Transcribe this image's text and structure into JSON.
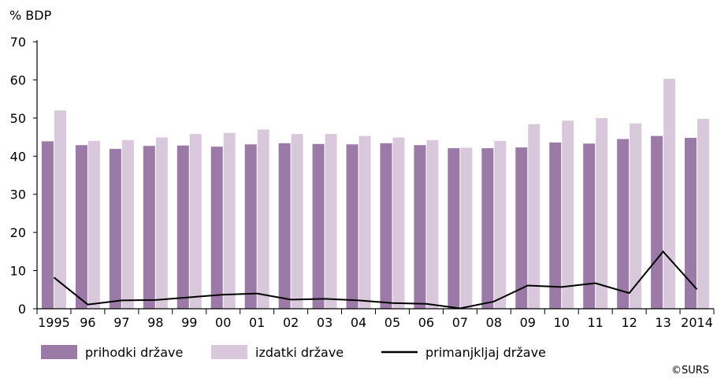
{
  "chart_data": {
    "type": "bar",
    "ylabel": "% BDP",
    "ylim": [
      0,
      70
    ],
    "yticks": [
      "0",
      "10",
      "20",
      "30",
      "40",
      "50",
      "60",
      "70"
    ],
    "grid": false,
    "legend_position": "bottom",
    "categories": [
      "1995",
      "96",
      "97",
      "98",
      "99",
      "00",
      "01",
      "02",
      "03",
      "04",
      "05",
      "06",
      "07",
      "08",
      "09",
      "10",
      "11",
      "12",
      "13",
      "2014"
    ],
    "series": [
      {
        "name": "prihodki države",
        "type": "bar",
        "color": "#9c7aa8",
        "values": [
          43.9,
          42.9,
          41.9,
          42.7,
          42.8,
          42.5,
          43.1,
          43.4,
          43.2,
          43.1,
          43.4,
          42.9,
          42.1,
          42.1,
          42.3,
          43.6,
          43.3,
          44.5,
          45.3,
          44.8
        ]
      },
      {
        "name": "izdatki države",
        "type": "bar",
        "color": "#d9c8dc",
        "values": [
          52.0,
          44.0,
          44.2,
          44.9,
          45.8,
          46.1,
          47.0,
          45.8,
          45.8,
          45.3,
          44.9,
          44.2,
          42.2,
          44.0,
          48.4,
          49.3,
          50.0,
          48.6,
          60.3,
          49.8
        ]
      },
      {
        "name": "primanjkljaj države",
        "type": "line",
        "color": "#000000",
        "values": [
          8.2,
          1.1,
          2.2,
          2.3,
          3.0,
          3.7,
          4.0,
          2.4,
          2.6,
          2.2,
          1.5,
          1.3,
          0.1,
          1.9,
          6.1,
          5.7,
          6.7,
          4.1,
          15.0,
          5.1
        ]
      }
    ],
    "source_note": "©SURS"
  }
}
